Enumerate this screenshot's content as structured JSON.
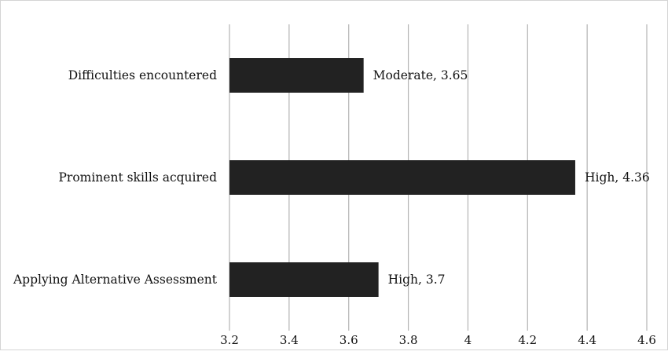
{
  "chart_data": {
    "type": "bar",
    "orientation": "horizontal",
    "title": "",
    "xlabel": "",
    "ylabel": "",
    "categories": [
      "Difficulties encountered",
      "Prominent skills acquired",
      "Applying Alternative Assessment"
    ],
    "values": [
      3.65,
      4.36,
      3.7
    ],
    "data_labels": [
      "Moderate, 3.65",
      "High, 4.36",
      "High, 3.7"
    ],
    "xlim": [
      3.2,
      4.6
    ],
    "xticks": [
      3.2,
      3.4,
      3.6,
      3.8,
      4,
      4.2,
      4.4,
      4.6
    ],
    "xtick_labels": [
      "3.2",
      "3.4",
      "3.6",
      "3.8",
      "4",
      "4.2",
      "4.4",
      "4.6"
    ],
    "grid": "vertical",
    "bar_color": "#222222",
    "grid_color": "#b3b3b3"
  }
}
